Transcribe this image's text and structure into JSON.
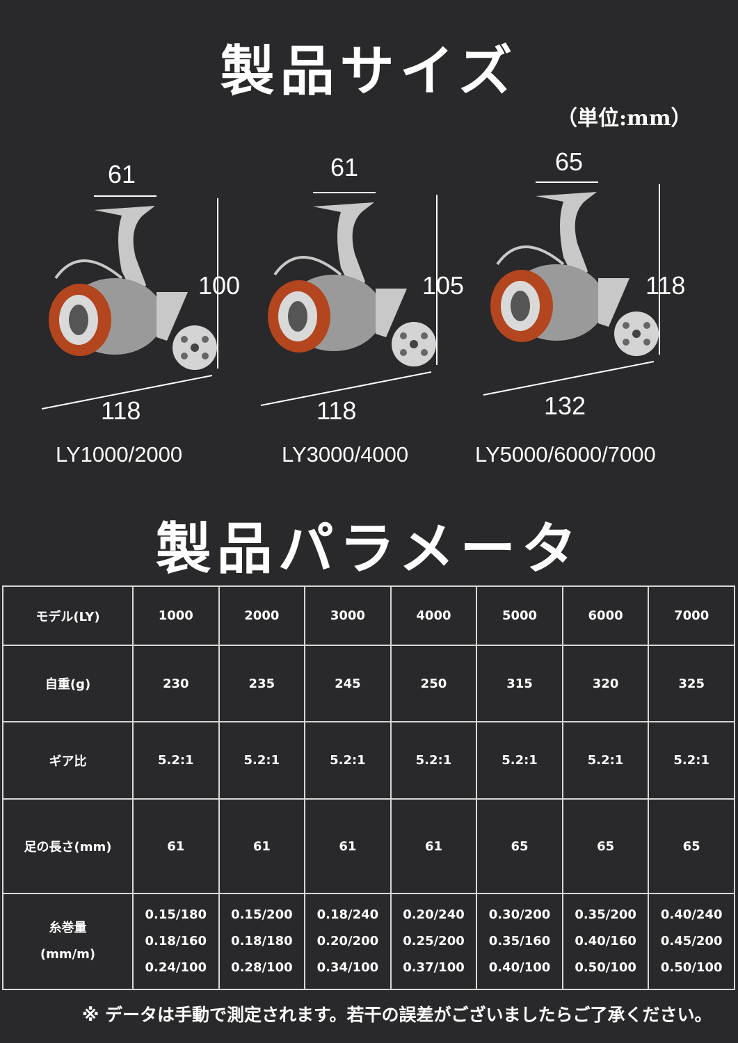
{
  "size_section": {
    "title": "製品サイズ",
    "unit": "（単位:mm）",
    "reels": [
      {
        "model": "LY1000/2000",
        "handle_width": "61",
        "height": "100",
        "length": "118"
      },
      {
        "model": "LY3000/4000",
        "handle_width": "61",
        "height": "105",
        "length": "118"
      },
      {
        "model": "LY5000/6000/7000",
        "handle_width": "65",
        "height": "118",
        "length": "132"
      }
    ],
    "colors": {
      "spool": "#b3461e",
      "body": "#c8c8c8",
      "background": "#29282a"
    }
  },
  "params_section": {
    "title": "製品パラメータ",
    "table": {
      "header": {
        "label": "モデル(LY)",
        "values": [
          "1000",
          "2000",
          "3000",
          "4000",
          "5000",
          "6000",
          "7000"
        ]
      },
      "rows": [
        {
          "label": "自重(g)",
          "values": [
            "230",
            "235",
            "245",
            "250",
            "315",
            "320",
            "325"
          ]
        },
        {
          "label": "ギア比",
          "values": [
            "5.2:1",
            "5.2:1",
            "5.2:1",
            "5.2:1",
            "5.2:1",
            "5.2:1",
            "5.2:1"
          ]
        },
        {
          "label": "足の長さ(mm)",
          "values": [
            "61",
            "61",
            "61",
            "61",
            "65",
            "65",
            "65"
          ]
        }
      ],
      "line_capacity": {
        "label_line1": "糸巻量",
        "label_line2": "(mm/m)",
        "values": [
          [
            "0.15/180",
            "0.18/160",
            "0.24/100"
          ],
          [
            "0.15/200",
            "0.18/180",
            "0.28/100"
          ],
          [
            "0.18/240",
            "0.20/200",
            "0.34/100"
          ],
          [
            "0.20/240",
            "0.25/200",
            "0.37/100"
          ],
          [
            "0.30/200",
            "0.35/160",
            "0.40/100"
          ],
          [
            "0.35/200",
            "0.40/160",
            "0.50/100"
          ],
          [
            "0.40/240",
            "0.45/200",
            "0.50/100"
          ]
        ]
      }
    }
  },
  "footnote": "※ データは手動で測定されます。若干の誤差がございましたらご了承ください。"
}
